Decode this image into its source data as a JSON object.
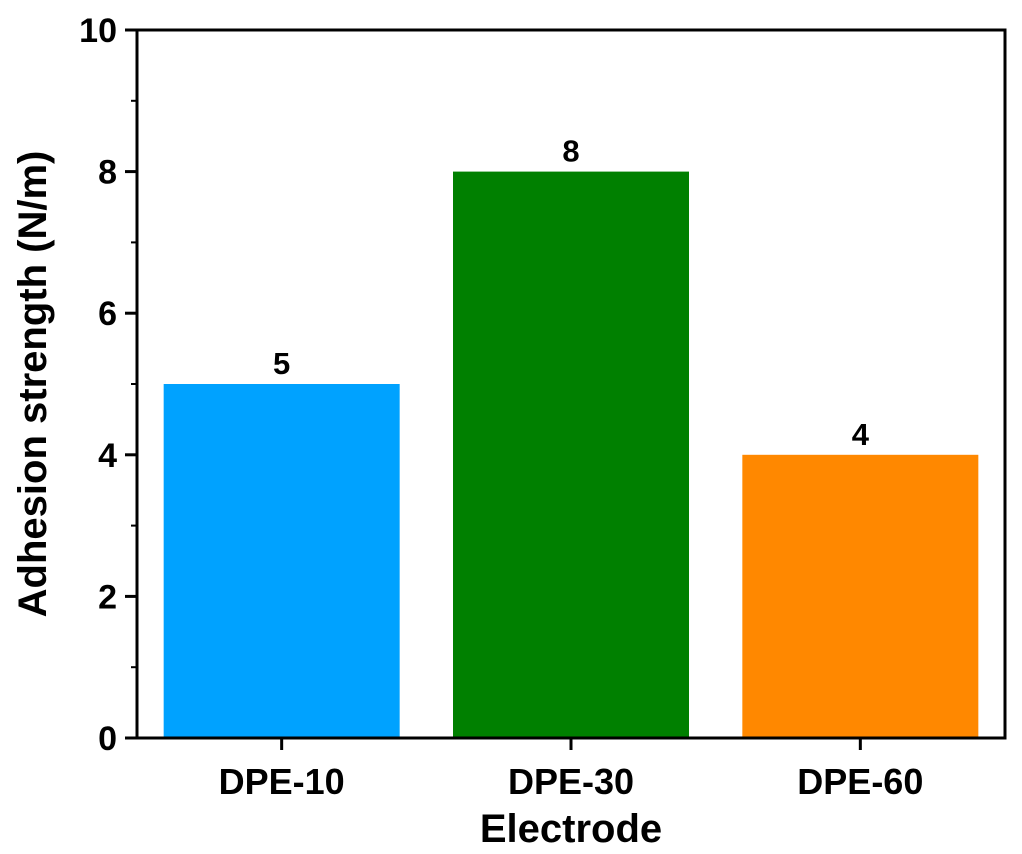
{
  "chart_data": {
    "type": "bar",
    "title": "",
    "xlabel": "Electrode",
    "ylabel": "Adhesion strength (N/m)",
    "categories": [
      "DPE-10",
      "DPE-30",
      "DPE-60"
    ],
    "values": [
      5,
      8,
      4
    ],
    "value_labels": [
      "5",
      "8",
      "4"
    ],
    "colors": [
      "#00A2FF",
      "#008000",
      "#FF8800"
    ],
    "ylim": [
      0,
      10
    ],
    "yticks": [
      0,
      2,
      4,
      6,
      8,
      10
    ],
    "ytick_labels": [
      "0",
      "2",
      "4",
      "6",
      "8",
      "10"
    ],
    "grid": false,
    "legend": "none"
  }
}
